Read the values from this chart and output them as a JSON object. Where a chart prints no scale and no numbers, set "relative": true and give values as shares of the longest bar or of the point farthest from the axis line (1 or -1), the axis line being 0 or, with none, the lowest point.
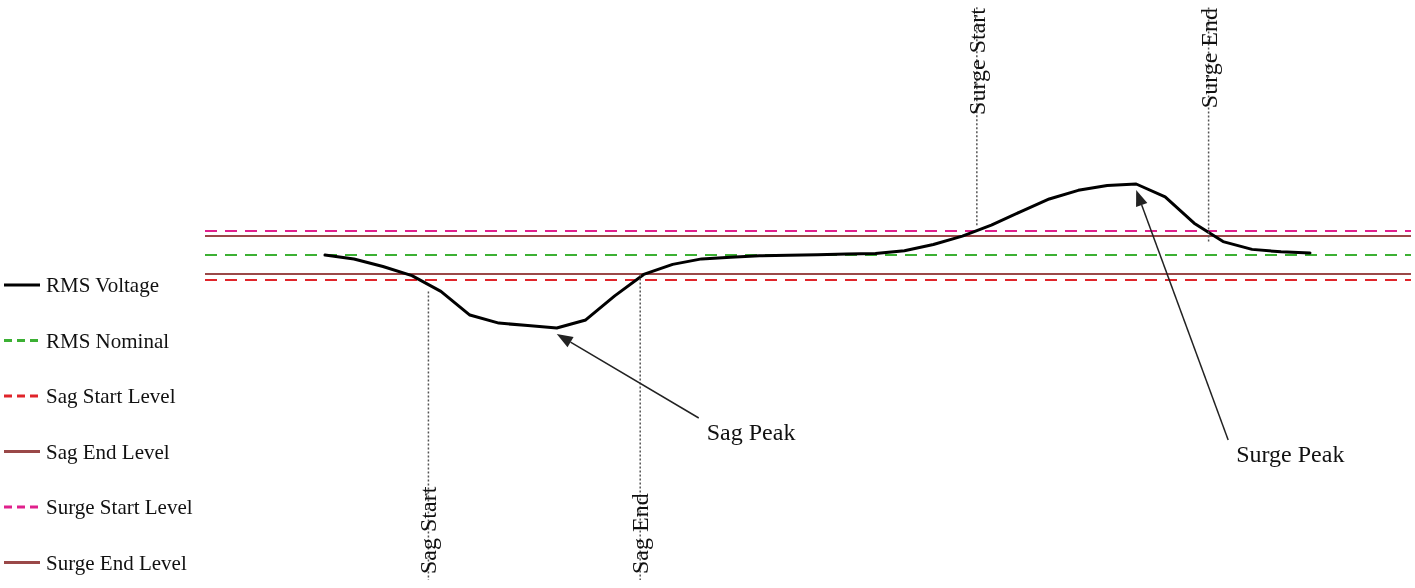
{
  "chart_data": {
    "type": "line",
    "relative": true,
    "legend": "left",
    "line_style": "solid",
    "categories": [
      null,
      null,
      null,
      null,
      null,
      null,
      null,
      null,
      null,
      null,
      null,
      null,
      null,
      null,
      null,
      null,
      null,
      null,
      null,
      null,
      null,
      null,
      null,
      null,
      null,
      null,
      null,
      null,
      null,
      null,
      null,
      null,
      null,
      null,
      null
    ],
    "series": [
      {
        "name": "RMS Voltage",
        "color": "#000000",
        "values": [
          0.507,
          0.479,
          0.427,
          0.364,
          0.254,
          0.09,
          0.034,
          0.017,
          0,
          0.056,
          0.223,
          0.372,
          0.442,
          0.48,
          0.492,
          0.501,
          0.505,
          0.509,
          0.514,
          0.518,
          0.537,
          0.58,
          0.638,
          0.714,
          0.807,
          0.896,
          0.956,
          0.99,
          1,
          0.911,
          0.728,
          0.6,
          0.546,
          0.529,
          0.521
        ]
      }
    ],
    "ref_lines": [
      {
        "axis": "y",
        "value": 0.507,
        "label": "RMS Nominal",
        "color": "#3cb034",
        "line_style": "dashed"
      },
      {
        "axis": "y",
        "value": 0.333,
        "label": "Sag Start Level",
        "color": "#e0242a",
        "line_style": "dashed"
      },
      {
        "axis": "y",
        "value": 0.375,
        "label": "Sag End Level",
        "color": "#9a4848",
        "line_style": "solid"
      },
      {
        "axis": "y",
        "value": 0.674,
        "label": "Surge Start Level",
        "color": "#e0208c",
        "line_style": "dashed"
      },
      {
        "axis": "y",
        "value": 0.639,
        "label": "Surge End Level",
        "color": "#9a4848",
        "line_style": "solid"
      }
    ],
    "annotations": [
      "Sag Start",
      "Sag End",
      "Surge Start",
      "Surge End",
      "Sag Peak",
      "Surge Peak"
    ]
  }
}
